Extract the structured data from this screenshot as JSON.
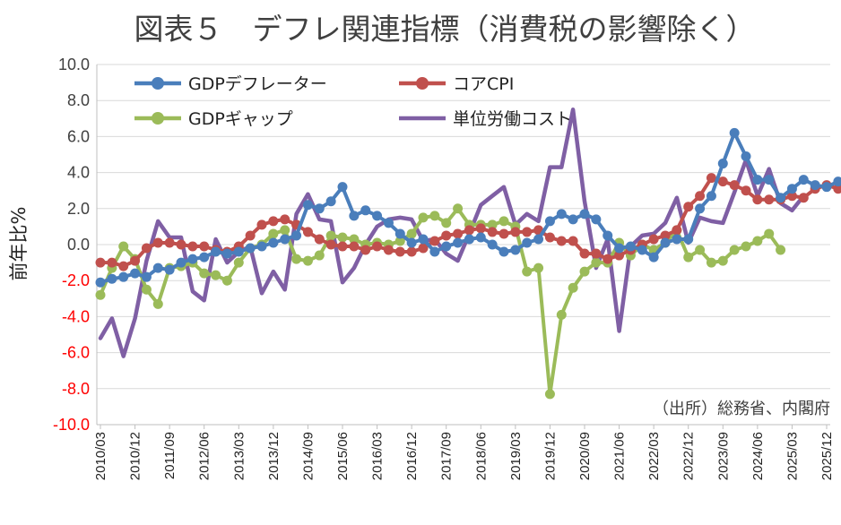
{
  "chart_data": {
    "type": "line",
    "title": "図表５　デフレ関連指標（消費税の影響除く）",
    "ylabel": "前年比%",
    "source": "（出所）総務省、内閣府",
    "ylim": [
      -10,
      10
    ],
    "yticks": [
      "10.0",
      "8.0",
      "6.0",
      "4.0",
      "2.0",
      "0.0",
      "-2.0",
      "-4.0",
      "-6.0",
      "-8.0",
      "-10.0"
    ],
    "ytick_values": [
      10,
      8,
      6,
      4,
      2,
      0,
      -2,
      -4,
      -6,
      -8,
      -10
    ],
    "ytick_colors": [
      "#404040",
      "#404040",
      "#404040",
      "#404040",
      "#404040",
      "#404040",
      "#ff0000",
      "#ff0000",
      "#ff0000",
      "#ff0000",
      "#ff0000"
    ],
    "xticks": [
      "2010/03",
      "2010/12",
      "2011/09",
      "2012/06",
      "2013/03",
      "2013/12",
      "2014/09",
      "2015/06",
      "2016/03",
      "2016/12",
      "2017/09",
      "2018/06",
      "2019/03",
      "2019/12",
      "2020/09",
      "2021/06",
      "2022/03",
      "2022/12",
      "2023/09",
      "2024/06",
      "2025/03",
      "2025/12"
    ],
    "xtick_start_index": 0,
    "xtick_step": 3,
    "grid": true,
    "legend": "top-left",
    "series": [
      {
        "name": "GDPデフレーター",
        "color": "#4a7ebb",
        "markers": true,
        "start_index": 0,
        "values": [
          -2.1,
          -1.9,
          -1.8,
          -1.6,
          -1.8,
          -1.3,
          -1.4,
          -1.0,
          -0.8,
          -0.7,
          -0.4,
          -0.5,
          -0.4,
          -0.2,
          -0.1,
          0.1,
          0.3,
          0.5,
          2.2,
          2.0,
          2.4,
          3.2,
          1.6,
          1.9,
          1.6,
          1.2,
          0.6,
          0.1,
          0.3,
          -0.4,
          -0.1,
          0.1,
          0.3,
          0.4,
          0.0,
          -0.4,
          -0.3,
          0.1,
          0.3,
          1.3,
          1.7,
          1.4,
          1.7,
          1.4,
          0.5,
          -0.2,
          -0.1,
          -0.3,
          -0.7,
          0.1,
          0.3,
          0.3,
          2.0,
          2.7,
          4.5,
          6.2,
          4.9,
          3.6,
          3.6,
          2.6,
          3.1,
          3.6,
          3.3,
          3.2,
          3.5
        ]
      },
      {
        "name": "コアCPI",
        "color": "#c0504d",
        "markers": true,
        "start_index": 0,
        "values": [
          -1.0,
          -1.0,
          -1.2,
          -0.9,
          -0.2,
          0.1,
          0.1,
          0.0,
          -0.1,
          -0.1,
          -0.3,
          -0.4,
          -0.1,
          0.5,
          1.1,
          1.3,
          1.4,
          1.1,
          0.7,
          0.3,
          0.0,
          -0.1,
          -0.1,
          -0.3,
          -0.1,
          -0.3,
          -0.4,
          -0.4,
          -0.2,
          0.2,
          0.5,
          0.6,
          0.8,
          0.9,
          0.7,
          0.6,
          0.7,
          0.7,
          0.8,
          0.4,
          0.2,
          0.2,
          -0.5,
          -0.5,
          -0.8,
          -0.6,
          -0.3,
          0.0,
          0.3,
          0.5,
          0.8,
          2.1,
          2.7,
          3.7,
          3.5,
          3.3,
          3.0,
          2.5,
          2.5,
          2.5,
          2.7,
          2.6,
          3.1,
          3.3,
          3.1,
          2.8
        ]
      },
      {
        "name": "GDPギャップ",
        "color": "#9bbb59",
        "markers": true,
        "start_index": 0,
        "values": [
          -2.8,
          -1.3,
          -0.1,
          -0.8,
          -2.5,
          -3.3,
          -1.3,
          -1.2,
          -1.0,
          -1.6,
          -1.7,
          -2.0,
          -1.0,
          -0.2,
          0.0,
          0.6,
          0.8,
          -0.8,
          -0.9,
          -0.6,
          0.5,
          0.4,
          0.3,
          0.0,
          0.1,
          0.0,
          0.2,
          0.6,
          1.5,
          1.6,
          1.2,
          2.0,
          1.1,
          1.1,
          1.1,
          1.3,
          1.0,
          -1.5,
          -1.3,
          -8.3,
          -3.9,
          -2.4,
          -1.5,
          -1.0,
          -1.0,
          0.1,
          -0.6,
          0.0,
          -0.3,
          0.1,
          0.8,
          -0.7,
          -0.3,
          -1.0,
          -0.9,
          -0.3,
          -0.1,
          0.2,
          0.6,
          -0.3
        ]
      },
      {
        "name": "単位労働コスト",
        "color": "#7f5fa4",
        "markers": false,
        "start_index": 0,
        "values": [
          -5.2,
          -4.1,
          -6.2,
          -4.1,
          -0.9,
          1.3,
          0.4,
          0.4,
          -2.6,
          -3.1,
          0.3,
          -1.0,
          -0.4,
          -0.1,
          -2.7,
          -1.5,
          -2.5,
          1.7,
          2.8,
          1.4,
          1.3,
          -2.1,
          -1.3,
          0.0,
          1.0,
          1.4,
          1.5,
          1.4,
          0.2,
          0.3,
          -0.5,
          -0.9,
          0.6,
          2.2,
          2.7,
          3.2,
          1.1,
          1.7,
          1.3,
          4.3,
          4.3,
          7.5,
          2.4,
          -1.3,
          0.3,
          -4.8,
          -0.1,
          0.5,
          0.6,
          1.2,
          2.6,
          0.1,
          1.5,
          1.3,
          1.2,
          2.9,
          4.7,
          2.7,
          4.2,
          2.3,
          1.9,
          2.7
        ]
      }
    ]
  }
}
